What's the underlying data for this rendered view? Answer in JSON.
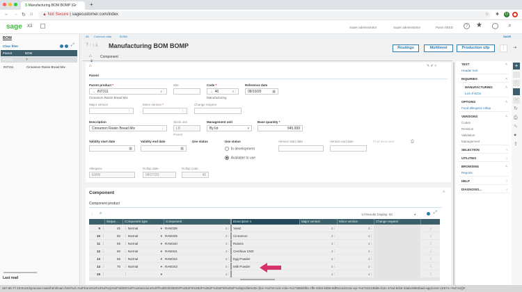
{
  "browser": {
    "tab_title": "Manufacturing BOM BOMP (Gr",
    "not_secure": "Not Secure",
    "url": "sagecustomer.com/index",
    "profile_initial": "O"
  },
  "header": {
    "logo": "sage",
    "app": "X3",
    "users": [
      "Super administrator",
      "Super administrator",
      "Panni SEED"
    ],
    "company": "SAGE"
  },
  "left_panel": {
    "title": "BOM",
    "clear_filter": "Clear filter",
    "columns": [
      "Parent",
      "BOM"
    ],
    "filter_value": "INT311",
    "rows": [
      {
        "parent": "INT311",
        "bom": "Cinnamon Raisin Bread Mix"
      }
    ],
    "last_read": "Last read"
  },
  "breadcrumb": [
    "All",
    "Common data",
    "BOMs"
  ],
  "page_title": "Manufacturing BOM BOMP",
  "tab": "Component",
  "buttons": {
    "routings": "Routings",
    "multilevel": "Multilevel",
    "production_slip": "Production slip"
  },
  "parent": {
    "section": "Parent",
    "parent_product_label": "Parent product",
    "parent_product": "INT311",
    "parent_product_desc": "Cinnamon Raisin Bread Mix",
    "site_label": "Site",
    "code_label": "Code",
    "code": "40",
    "code_desc": "Manufacturing",
    "reference_date_label": "Reference date",
    "reference_date": "08/10/20",
    "major_version_label": "Major version",
    "minor_version_label": "Minor version",
    "change_request_label": "Change request",
    "description_label": "Description",
    "description": "Cinnamon Raisin Bread Mix",
    "stock_unit_label": "Stock unit",
    "stock_unit": "LB",
    "stock_unit_desc": "Pound",
    "management_unit_label": "Management unit",
    "management_unit": "By lot",
    "base_quantity_label": "Base quantity",
    "base_quantity": "945.000",
    "validity_start_label": "Validity start date",
    "validity_end_label": "Validity end date",
    "use_status_label": "Use status",
    "use_status_label2": "Use status",
    "use_status_options": [
      "In development",
      "Available to use"
    ],
    "use_status_selected": "Available to use",
    "version_start_label": "Version start date",
    "version_end_label": "Version end date",
    "plm_label": "PLM document",
    "allergens_label": "Allergens",
    "allergens": "EMW",
    "rollup_date_label": "Rollup date",
    "rollup_date": "04/27/20",
    "rollup_code_label": "Rollup code",
    "rollup_code": "40"
  },
  "component": {
    "section": "Component",
    "subsection": "Component product",
    "results": "14 Results",
    "display_label": "Display:",
    "display_value": "50",
    "columns": [
      "Seque...",
      "Component type",
      "Component",
      "Description 1",
      "Major version",
      "Minor version",
      "Change request"
    ],
    "rows": [
      {
        "n": "9",
        "seq": "45",
        "type": "Normal",
        "comp": "RAW338",
        "desc": "Yeast"
      },
      {
        "n": "10",
        "seq": "50",
        "type": "Normal",
        "comp": "RAW339",
        "desc": "Cinnamon"
      },
      {
        "n": "11",
        "seq": "55",
        "type": "Normal",
        "comp": "RAW340",
        "desc": "Raisins"
      },
      {
        "n": "12",
        "seq": "60",
        "type": "Normal",
        "comp": "RAW341",
        "desc": "Cerefava 1000"
      },
      {
        "n": "13",
        "seq": "65",
        "type": "Normal",
        "comp": "RAW342",
        "desc": "Egg Powder"
      },
      {
        "n": "14",
        "seq": "70",
        "type": "Normal",
        "comp": "RAW343",
        "desc": "Milk Powder"
      },
      {
        "n": "15",
        "seq": "",
        "type": "",
        "comp": "",
        "desc": ""
      }
    ],
    "arrow_color": "#d6336c"
  },
  "right_panel": {
    "sections": [
      {
        "title": "TEXT",
        "links": [
          "Header text"
        ]
      },
      {
        "title": "INQUIRIES",
        "links": []
      },
      {
        "title": "MANUFACTURING",
        "links": [
          "List of WOs"
        ]
      },
      {
        "title": "OPTIONS",
        "links": [
          "Food allergens rollup"
        ]
      },
      {
        "title": "VERSIONS",
        "items": [
          "Codes",
          "Revision",
          "Validation",
          "Management"
        ]
      },
      {
        "title": "SELECTION"
      },
      {
        "title": "UTILITIES"
      },
      {
        "title": "BROWSING",
        "links": [
          "Reports"
        ]
      },
      {
        "title": "HELP"
      },
      {
        "title": "DIAGNOSIS..."
      }
    ]
  },
  "status_url": "167.86.77.23:8124/syracuse-main/html/main.html?url=%2Ftrans%2Fx3%2Ferp%2FSEED%2F%24sessions%3Ff%3DGESBODP%252F2%252F%252F%252FM%252F%26profile%3D~(loc~%27en-US~role~%27395b6f91-cffe-4004-93b9-9df91ca10c2a~ep~%27162136d6-cb2c-47ad-9cb6-33abc6962bad~appConn~(KEY1~%27x3))#",
  "colors": {
    "accent": "#2a7ab0",
    "grid_header": "#3d5f6b",
    "sage_green": "#3dbb3d"
  }
}
